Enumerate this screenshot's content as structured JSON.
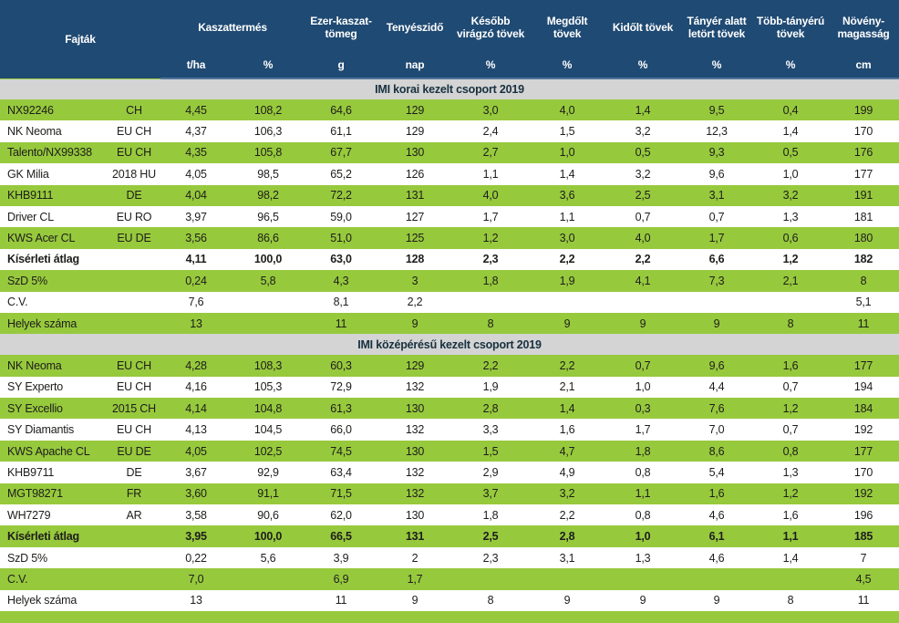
{
  "colors": {
    "header_bg": "#1f4a73",
    "row_green": "#97c93d",
    "section_bg": "#d4d4d4",
    "text": "#1d1d1b"
  },
  "table": {
    "headers": {
      "fajtak": "Fajták",
      "kaszattermes": "Kaszattermés",
      "ezer_kaszat_tomeg": "Ezer-kaszat-tömeg",
      "tenyeszido": "Tenyészidő",
      "kesobb_viragzo": "Később virágzó tövek",
      "megdolt": "Megdőlt tövek",
      "kidolt": "Kidőlt tövek",
      "tanyer_alatt": "Tányér alatt letört tövek",
      "tobb_tanyeru": "Több-tányérú tövek",
      "noveny_magassag": "Növény-magasság"
    },
    "units": [
      "t/ha",
      "%",
      "g",
      "nap",
      "%",
      "%",
      "%",
      "%",
      "%",
      "cm"
    ],
    "groups": [
      {
        "title": "IMI korai kezelt csoport 2019",
        "rows": [
          {
            "name": "NX92246",
            "origin": "CH",
            "bold": false,
            "values": [
              "4,45",
              "108,2",
              "64,6",
              "129",
              "3,0",
              "4,0",
              "1,4",
              "9,5",
              "0,4",
              "199"
            ]
          },
          {
            "name": "NK Neoma",
            "origin": "EU CH",
            "bold": false,
            "values": [
              "4,37",
              "106,3",
              "61,1",
              "129",
              "2,4",
              "1,5",
              "3,2",
              "12,3",
              "1,4",
              "170"
            ]
          },
          {
            "name": "Talento/NX99338",
            "origin": "EU CH",
            "bold": false,
            "values": [
              "4,35",
              "105,8",
              "67,7",
              "130",
              "2,7",
              "1,0",
              "0,5",
              "9,3",
              "0,5",
              "176"
            ]
          },
          {
            "name": "GK Milia",
            "origin": "2018 HU",
            "bold": false,
            "values": [
              "4,05",
              "98,5",
              "65,2",
              "126",
              "1,1",
              "1,4",
              "3,2",
              "9,6",
              "1,0",
              "177"
            ]
          },
          {
            "name": "KHB9111",
            "origin": "DE",
            "bold": false,
            "values": [
              "4,04",
              "98,2",
              "72,2",
              "131",
              "4,0",
              "3,6",
              "2,5",
              "3,1",
              "3,2",
              "191"
            ]
          },
          {
            "name": "Driver CL",
            "origin": "EU RO",
            "bold": false,
            "values": [
              "3,97",
              "96,5",
              "59,0",
              "127",
              "1,7",
              "1,1",
              "0,7",
              "0,7",
              "1,3",
              "181"
            ]
          },
          {
            "name": "KWS Acer CL",
            "origin": "EU DE",
            "bold": false,
            "values": [
              "3,56",
              "86,6",
              "51,0",
              "125",
              "1,2",
              "3,0",
              "4,0",
              "1,7",
              "0,6",
              "180"
            ]
          },
          {
            "name": "Kísérleti átlag",
            "origin": "",
            "bold": true,
            "values": [
              "4,11",
              "100,0",
              "63,0",
              "128",
              "2,3",
              "2,2",
              "2,2",
              "6,6",
              "1,2",
              "182"
            ]
          },
          {
            "name": "SzD 5%",
            "origin": "",
            "bold": false,
            "values": [
              "0,24",
              "5,8",
              "4,3",
              "3",
              "1,8",
              "1,9",
              "4,1",
              "7,3",
              "2,1",
              "8"
            ]
          },
          {
            "name": "C.V.",
            "origin": "",
            "bold": false,
            "values": [
              "7,6",
              "",
              "8,1",
              "2,2",
              "",
              "",
              "",
              "",
              "",
              "5,1"
            ]
          },
          {
            "name": "Helyek száma",
            "origin": "",
            "bold": false,
            "values": [
              "13",
              "",
              "11",
              "9",
              "8",
              "9",
              "9",
              "9",
              "8",
              "11"
            ]
          }
        ]
      },
      {
        "title": "IMI középérésű kezelt csoport 2019",
        "rows": [
          {
            "name": "NK Neoma",
            "origin": "EU CH",
            "bold": false,
            "values": [
              "4,28",
              "108,3",
              "60,3",
              "129",
              "2,2",
              "2,2",
              "0,7",
              "9,6",
              "1,6",
              "177"
            ]
          },
          {
            "name": "SY Experto",
            "origin": "EU CH",
            "bold": false,
            "values": [
              "4,16",
              "105,3",
              "72,9",
              "132",
              "1,9",
              "2,1",
              "1,0",
              "4,4",
              "0,7",
              "194"
            ]
          },
          {
            "name": "SY Excellio",
            "origin": "2015 CH",
            "bold": false,
            "values": [
              "4,14",
              "104,8",
              "61,3",
              "130",
              "2,8",
              "1,4",
              "0,3",
              "7,6",
              "1,2",
              "184"
            ]
          },
          {
            "name": "SY Diamantis",
            "origin": "EU CH",
            "bold": false,
            "values": [
              "4,13",
              "104,5",
              "66,0",
              "132",
              "3,3",
              "1,6",
              "1,7",
              "7,0",
              "0,7",
              "192"
            ]
          },
          {
            "name": "KWS Apache CL",
            "origin": "EU DE",
            "bold": false,
            "values": [
              "4,05",
              "102,5",
              "74,5",
              "130",
              "1,5",
              "4,7",
              "1,8",
              "8,6",
              "0,8",
              "177"
            ]
          },
          {
            "name": "KHB9711",
            "origin": "DE",
            "bold": false,
            "values": [
              "3,67",
              "92,9",
              "63,4",
              "132",
              "2,9",
              "4,9",
              "0,8",
              "5,4",
              "1,3",
              "170"
            ]
          },
          {
            "name": "MGT98271",
            "origin": "FR",
            "bold": false,
            "values": [
              "3,60",
              "91,1",
              "71,5",
              "132",
              "3,7",
              "3,2",
              "1,1",
              "1,6",
              "1,2",
              "192"
            ]
          },
          {
            "name": "WH7279",
            "origin": "AR",
            "bold": false,
            "values": [
              "3,58",
              "90,6",
              "62,0",
              "130",
              "1,8",
              "2,2",
              "0,8",
              "4,6",
              "1,6",
              "196"
            ]
          },
          {
            "name": "Kísérleti átlag",
            "origin": "",
            "bold": true,
            "values": [
              "3,95",
              "100,0",
              "66,5",
              "131",
              "2,5",
              "2,8",
              "1,0",
              "6,1",
              "1,1",
              "185"
            ]
          },
          {
            "name": "SzD 5%",
            "origin": "",
            "bold": false,
            "values": [
              "0,22",
              "5,6",
              "3,9",
              "2",
              "2,3",
              "3,1",
              "1,3",
              "4,6",
              "1,4",
              "7"
            ]
          },
          {
            "name": "C.V.",
            "origin": "",
            "bold": false,
            "values": [
              "7,0",
              "",
              "6,9",
              "1,7",
              "",
              "",
              "",
              "",
              "",
              "4,5"
            ]
          },
          {
            "name": "Helyek száma",
            "origin": "",
            "bold": false,
            "values": [
              "13",
              "",
              "11",
              "9",
              "8",
              "9",
              "9",
              "9",
              "8",
              "11"
            ]
          }
        ]
      }
    ]
  }
}
